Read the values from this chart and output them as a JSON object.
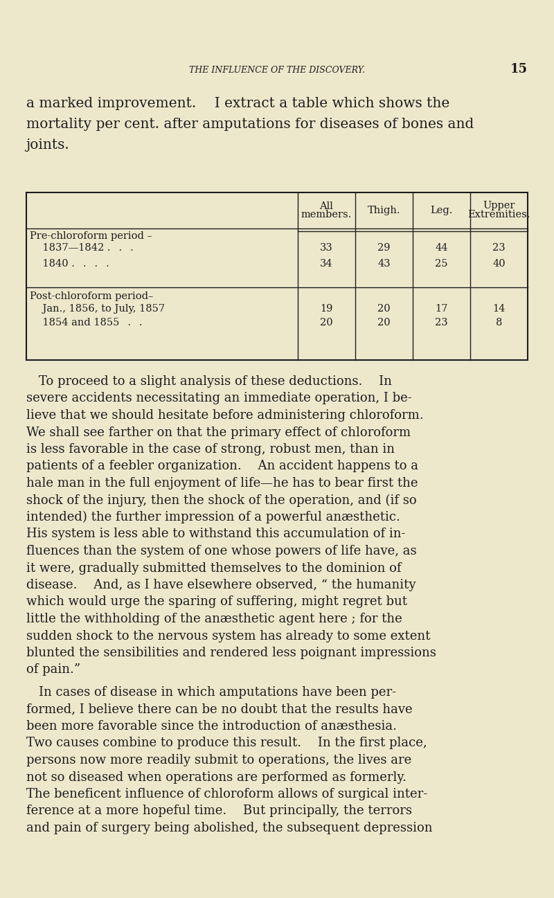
{
  "bg_color": "#ede8cc",
  "page_number": "15",
  "header_text": "THE INFLUENCE OF THE DISCOVERY.",
  "intro_line1": "a marked improvement.  I extract a table which shows the",
  "intro_line2": "mortality per cent. after amputations for diseases of bones and",
  "intro_line3": "joints.",
  "table_col_headers": [
    "All\nmembers.",
    "Thigh.",
    "Leg.",
    "Upper\nExtremities."
  ],
  "table_row1_label1": "Pre-chloroform period –",
  "table_row1_label2": "    1837—1842 .  .  .",
  "table_row2_label": "    1840 .  .  .  .",
  "table_row3_label1": "Post-chloroform period–",
  "table_row3_label2": "    Jan., 1856, to July, 1857",
  "table_row4_label": "    1854 and 1855  .  .",
  "table_row1_vals": [
    "33",
    "29",
    "44",
    "23"
  ],
  "table_row2_vals": [
    "34",
    "43",
    "25",
    "40"
  ],
  "table_row3_vals": [
    "19",
    "20",
    "17",
    "14"
  ],
  "table_row4_vals": [
    "20",
    "20",
    "23",
    "8"
  ],
  "p1_lines": [
    " To proceed to a slight analysis of these deductions.  In",
    "severe accidents necessitating an immediate operation, I be-",
    "lieve that we should hesitate before administering chloroform.",
    "We shall see farther on that the primary effect of chloroform",
    "is less favorable in the case of strong, robust men, than in",
    "patients of a feebler organization.  An accident happens to a",
    "hale man in the full enjoyment of life—he has to bear first the",
    "shock of the injury, then the shock of the operation, and (if so",
    "intended) the further impression of a powerful anæsthetic.",
    "His system is less able to withstand this accumulation of in-",
    "fluences than the system of one whose powers of life have, as",
    "it were, gradually submitted themselves to the dominion of",
    "disease.  And, as I have elsewhere observed, “ the humanity",
    "which would urge the sparing of suffering, might regret but",
    "little the withholding of the anæsthetic agent here ; for the",
    "sudden shock to the nervous system has already to some extent",
    "blunted the sensibilities and rendered less poignant impressions",
    "of pain.”"
  ],
  "p2_lines": [
    " In cases of disease in which amputations have been per-",
    "formed, I believe there can be no doubt that the results have",
    "been more favorable since the introduction of anæsthesia.",
    "Two causes combine to produce this result.  In the first place,",
    "persons now more readily submit to operations, the lives are",
    "not so diseased when operations are performed as formerly.",
    "The beneficent influence of chloroform allows of surgical inter-",
    "ference at a more hopeful time.  But principally, the terrors",
    "and pain of surgery being abolished, the subsequent depression"
  ],
  "text_color": "#1c1c1c"
}
